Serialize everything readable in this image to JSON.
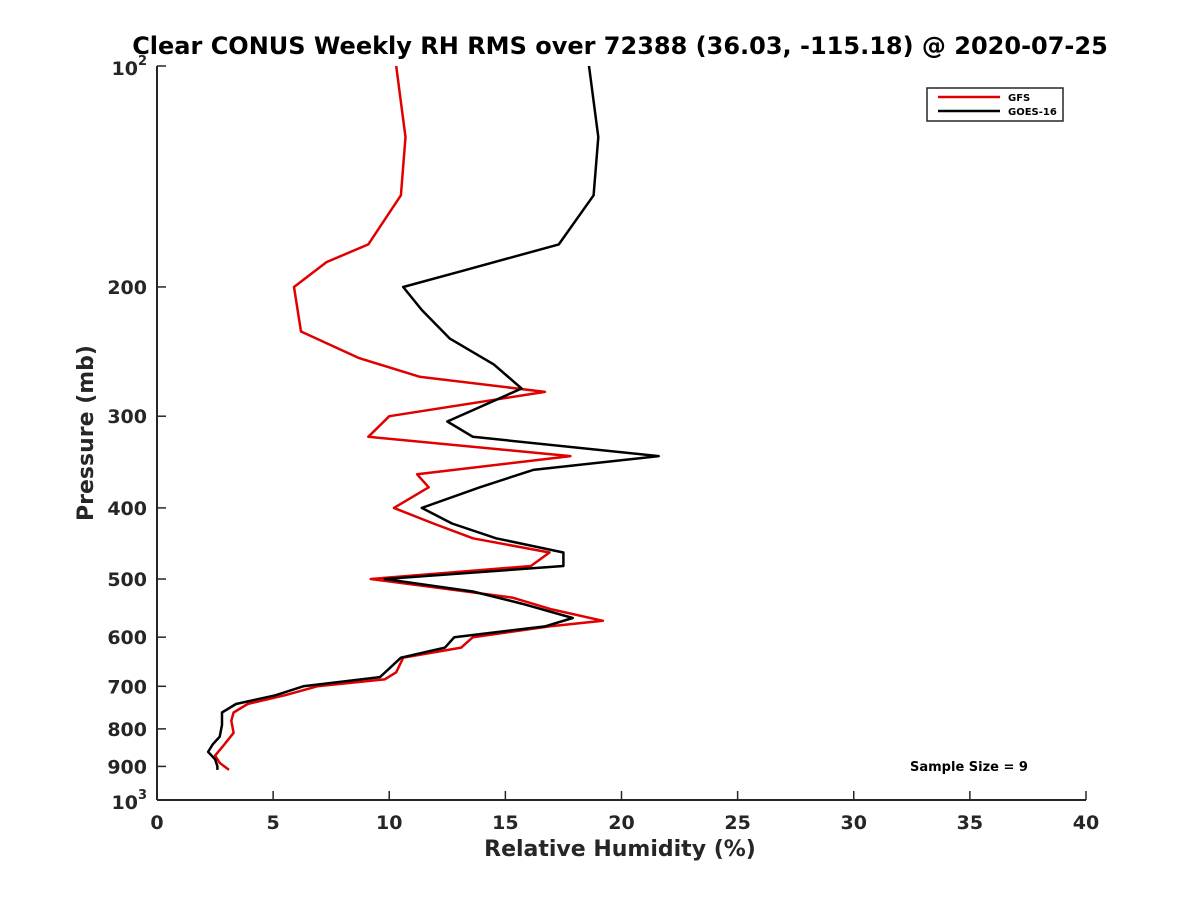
{
  "chart_data": {
    "type": "line",
    "title": "Clear CONUS Weekly RH RMS over 72388 (36.03, -115.18) @ 2020-07-25",
    "xlabel": "Relative Humidity (%)",
    "ylabel": "Pressure (mb)",
    "xlim": [
      0,
      40
    ],
    "ylim": [
      1000,
      100
    ],
    "yscale": "log",
    "y_reversed": true,
    "grid": false,
    "legend_position": "top-right",
    "x_ticks": [
      "0",
      "5",
      "10",
      "15",
      "20",
      "25",
      "30",
      "35",
      "40"
    ],
    "y_ticks": [
      {
        "value": 100,
        "base": "10",
        "exp": "2"
      },
      {
        "value": 200,
        "label": "200"
      },
      {
        "value": 300,
        "label": "300"
      },
      {
        "value": 400,
        "label": "400"
      },
      {
        "value": 500,
        "label": "500"
      },
      {
        "value": 600,
        "label": "600"
      },
      {
        "value": 700,
        "label": "700"
      },
      {
        "value": 800,
        "label": "800"
      },
      {
        "value": 900,
        "label": "900"
      },
      {
        "value": 1000,
        "base": "10",
        "exp": "3"
      }
    ],
    "annotation": "Sample Size = 9",
    "series": [
      {
        "name": "GFS",
        "color": "#e00000",
        "points": [
          [
            10.3,
            100
          ],
          [
            10.7,
            125
          ],
          [
            10.5,
            150
          ],
          [
            9.1,
            175
          ],
          [
            7.3,
            185
          ],
          [
            5.9,
            200
          ],
          [
            6.2,
            230
          ],
          [
            8.7,
            250
          ],
          [
            11.3,
            265
          ],
          [
            16.7,
            278
          ],
          [
            10.0,
            300
          ],
          [
            9.1,
            320
          ],
          [
            17.8,
            340
          ],
          [
            11.2,
            360
          ],
          [
            11.7,
            375
          ],
          [
            10.2,
            400
          ],
          [
            11.9,
            420
          ],
          [
            13.6,
            440
          ],
          [
            16.9,
            460
          ],
          [
            16.1,
            480
          ],
          [
            9.2,
            500
          ],
          [
            15.3,
            530
          ],
          [
            17.0,
            550
          ],
          [
            19.2,
            570
          ],
          [
            16.9,
            580
          ],
          [
            13.6,
            600
          ],
          [
            13.1,
            620
          ],
          [
            10.6,
            640
          ],
          [
            10.3,
            670
          ],
          [
            9.8,
            685
          ],
          [
            6.9,
            700
          ],
          [
            5.5,
            720
          ],
          [
            3.9,
            740
          ],
          [
            3.3,
            760
          ],
          [
            3.2,
            780
          ],
          [
            3.3,
            810
          ],
          [
            2.9,
            840
          ],
          [
            2.5,
            870
          ],
          [
            2.7,
            890
          ],
          [
            3.1,
            910
          ]
        ]
      },
      {
        "name": "GOES-16",
        "color": "#000000",
        "points": [
          [
            18.6,
            100
          ],
          [
            19.0,
            125
          ],
          [
            18.8,
            150
          ],
          [
            17.3,
            175
          ],
          [
            13.2,
            190
          ],
          [
            10.6,
            200
          ],
          [
            11.4,
            215
          ],
          [
            12.6,
            235
          ],
          [
            14.5,
            255
          ],
          [
            15.7,
            275
          ],
          [
            12.5,
            305
          ],
          [
            13.6,
            320
          ],
          [
            21.6,
            340
          ],
          [
            16.2,
            355
          ],
          [
            13.9,
            375
          ],
          [
            11.4,
            400
          ],
          [
            12.7,
            420
          ],
          [
            14.6,
            440
          ],
          [
            17.5,
            460
          ],
          [
            17.5,
            480
          ],
          [
            9.8,
            500
          ],
          [
            13.6,
            520
          ],
          [
            15.7,
            540
          ],
          [
            17.9,
            565
          ],
          [
            16.7,
            580
          ],
          [
            12.8,
            600
          ],
          [
            12.4,
            620
          ],
          [
            10.5,
            640
          ],
          [
            9.6,
            680
          ],
          [
            6.3,
            700
          ],
          [
            5.1,
            720
          ],
          [
            3.4,
            740
          ],
          [
            2.8,
            760
          ],
          [
            2.8,
            790
          ],
          [
            2.7,
            820
          ],
          [
            2.4,
            840
          ],
          [
            2.2,
            860
          ],
          [
            2.5,
            880
          ],
          [
            2.6,
            900
          ],
          [
            2.6,
            910
          ]
        ]
      }
    ]
  }
}
